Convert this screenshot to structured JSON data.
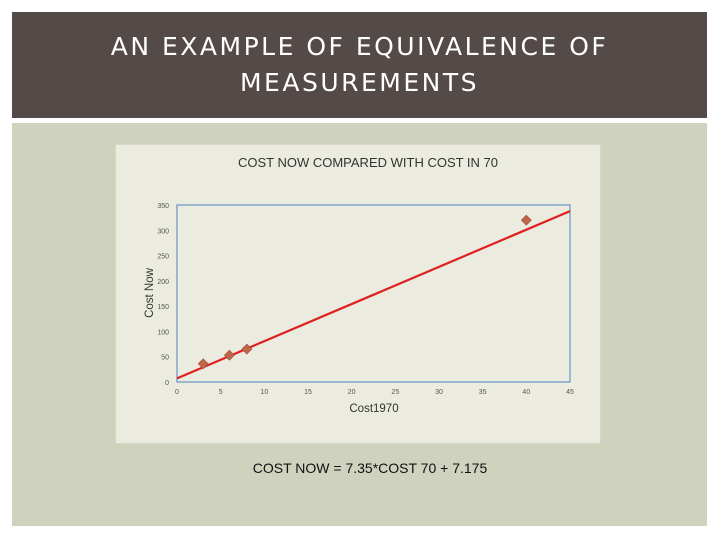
{
  "slide": {
    "title": "AN EXAMPLE OF EQUIVALENCE OF MEASUREMENTS",
    "equation": "COST NOW = 7.35*COST 70 + 7.175"
  },
  "colors": {
    "title_band": "#544a47",
    "background": "#cfd3bd",
    "chart_area": "#ebebdf",
    "marker": "#c0674b",
    "trendline": "#e02020",
    "plot_border": "#4e82bd"
  },
  "chart_data": {
    "type": "scatter",
    "title": "COST NOW COMPARED WITH COST IN 70",
    "xlabel": "Cost1970",
    "ylabel": "Cost Now",
    "xlim": [
      0,
      45
    ],
    "ylim": [
      0,
      350
    ],
    "x_ticks": [
      0,
      5,
      10,
      15,
      20,
      25,
      30,
      35,
      40,
      45
    ],
    "y_ticks": [
      0,
      50,
      100,
      150,
      200,
      250,
      300,
      350
    ],
    "grid": false,
    "series": [
      {
        "marker": "diamond",
        "points": [
          {
            "x": 3,
            "y": 36
          },
          {
            "x": 6,
            "y": 53
          },
          {
            "x": 8,
            "y": 65
          },
          {
            "x": 40,
            "y": 320
          }
        ]
      }
    ],
    "trendline": {
      "type": "linear",
      "slope": 7.35,
      "intercept": 7.175,
      "x_range": [
        0,
        45
      ]
    }
  }
}
